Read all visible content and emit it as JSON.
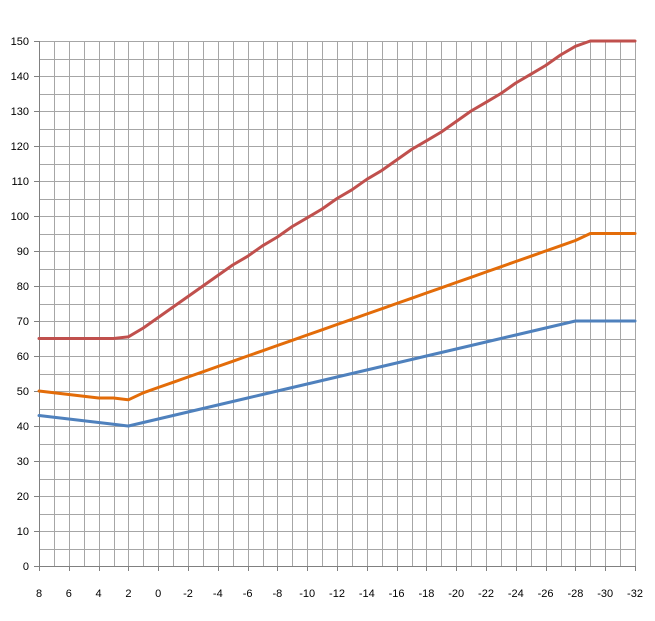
{
  "chart_data": {
    "type": "line",
    "title": "",
    "xlabel": "",
    "ylabel": "",
    "x": [
      8,
      7,
      6,
      5,
      4,
      3,
      2,
      1,
      0,
      -1,
      -2,
      -3,
      -4,
      -5,
      -6,
      -7,
      -8,
      -9,
      -10,
      -11,
      -12,
      -13,
      -14,
      -15,
      -16,
      -17,
      -18,
      -19,
      -20,
      -21,
      -22,
      -23,
      -24,
      -25,
      -26,
      -27,
      -28,
      -29,
      -30,
      -31,
      -32
    ],
    "x_tick_labels": [
      "8",
      "6",
      "4",
      "2",
      "0",
      "-2",
      "-4",
      "-6",
      "-8",
      "-10",
      "-12",
      "-14",
      "-16",
      "-18",
      "-20",
      "-22",
      "-24",
      "-26",
      "-28",
      "-30",
      "-32"
    ],
    "x_ticks": [
      8,
      6,
      4,
      2,
      0,
      -2,
      -4,
      -6,
      -8,
      -10,
      -12,
      -14,
      -16,
      -18,
      -20,
      -22,
      -24,
      -26,
      -28,
      -30,
      -32
    ],
    "xlim": [
      8,
      -32
    ],
    "ylim": [
      0,
      150
    ],
    "y_ticks": [
      0,
      10,
      20,
      30,
      40,
      50,
      60,
      70,
      80,
      90,
      100,
      110,
      120,
      130,
      140,
      150
    ],
    "y_tick_labels": [
      "0",
      "10",
      "20",
      "30",
      "40",
      "50",
      "60",
      "70",
      "80",
      "90",
      "100",
      "110",
      "120",
      "130",
      "140",
      "150"
    ],
    "grid": true,
    "legend": "none",
    "series": [
      {
        "color": "#c0504d",
        "values": [
          65,
          65,
          65,
          65,
          65,
          65,
          65.5,
          68,
          71,
          74,
          77,
          80,
          83,
          86,
          88.5,
          91.5,
          94,
          97,
          99.5,
          102,
          105,
          107.5,
          110.5,
          113,
          116,
          119,
          121.5,
          124,
          127,
          130,
          132.5,
          135,
          138,
          140.5,
          143,
          146,
          148.5,
          150,
          150,
          150,
          150
        ]
      },
      {
        "color": "#e36c09",
        "values": [
          50,
          49.5,
          49,
          48.5,
          48,
          48,
          47.5,
          49.5,
          51,
          52.5,
          54,
          55.5,
          57,
          58.5,
          60,
          61.5,
          63,
          64.5,
          66,
          67.5,
          69,
          70.5,
          72,
          73.5,
          75,
          76.5,
          78,
          79.5,
          81,
          82.5,
          84,
          85.5,
          87,
          88.5,
          90,
          91.5,
          93,
          95,
          95,
          95,
          95
        ]
      },
      {
        "color": "#4f81bd",
        "values": [
          43,
          42.5,
          42,
          41.5,
          41,
          40.5,
          40,
          41,
          42,
          43,
          44,
          45,
          46,
          47,
          48,
          49,
          50,
          51,
          52,
          53,
          54,
          55,
          56,
          57,
          58,
          59,
          60,
          61,
          62,
          63,
          64,
          65,
          66,
          67,
          68,
          69,
          70,
          70,
          70,
          70,
          70
        ]
      }
    ]
  }
}
